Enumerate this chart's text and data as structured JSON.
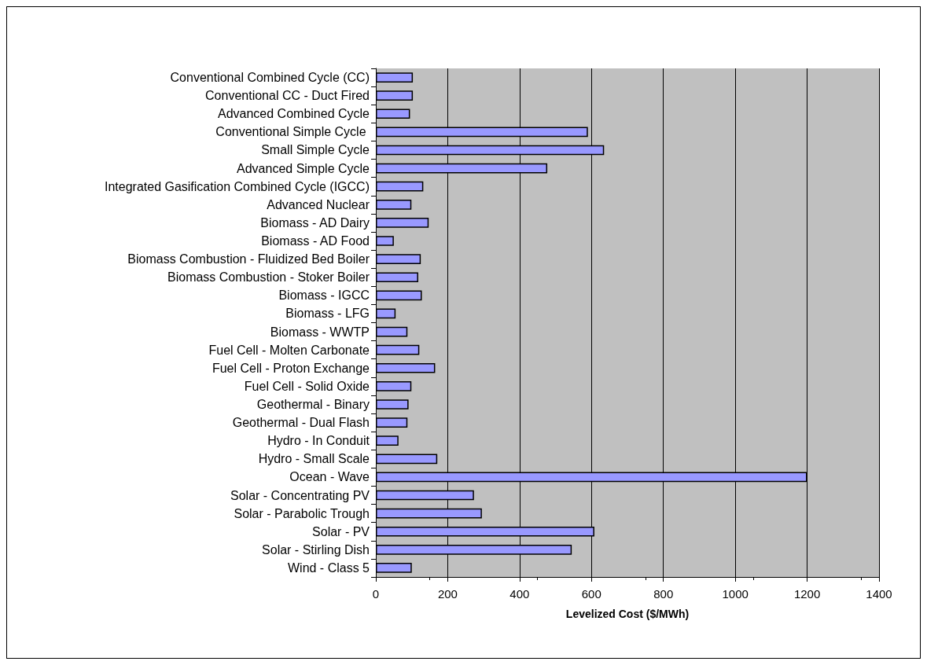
{
  "chart_data": {
    "type": "bar",
    "orientation": "horizontal",
    "xlabel": "Levelized Cost ($/MWh)",
    "categories": [
      "Conventional Combined Cycle (CC)",
      "Conventional CC - Duct Fired",
      "Advanced Combined Cycle",
      "Conventional Simple Cycle ",
      "Small Simple Cycle",
      "Advanced Simple Cycle",
      "Integrated Gasification Combined Cycle (IGCC)",
      "Advanced Nuclear",
      "Biomass - AD Dairy",
      "Biomass - AD Food",
      "Biomass Combustion - Fluidized Bed Boiler",
      "Biomass Combustion - Stoker Boiler",
      "Biomass - IGCC",
      "Biomass - LFG",
      "Biomass - WWTP",
      "Fuel Cell - Molten Carbonate",
      "Fuel Cell - Proton Exchange",
      "Fuel Cell - Solid Oxide",
      "Geothermal - Binary",
      "Geothermal - Dual Flash",
      "Hydro - In Conduit",
      "Hydro - Small Scale",
      "Ocean - Wave",
      "Solar - Concentrating PV",
      "Solar - Parabolic Trough",
      "Solar - PV",
      "Solar - Stirling Dish",
      "Wind - Class 5"
    ],
    "values": [
      103,
      103,
      95,
      590,
      635,
      477,
      132,
      99,
      147,
      50,
      125,
      118,
      128,
      55,
      88,
      121,
      165,
      99,
      91,
      88,
      63,
      171,
      1200,
      273,
      295,
      608,
      545,
      100
    ],
    "color": "#9999ff",
    "xlim": [
      0,
      1400
    ],
    "xticks": [
      0,
      200,
      400,
      600,
      800,
      1000,
      1200,
      1400
    ],
    "grid": "x"
  }
}
